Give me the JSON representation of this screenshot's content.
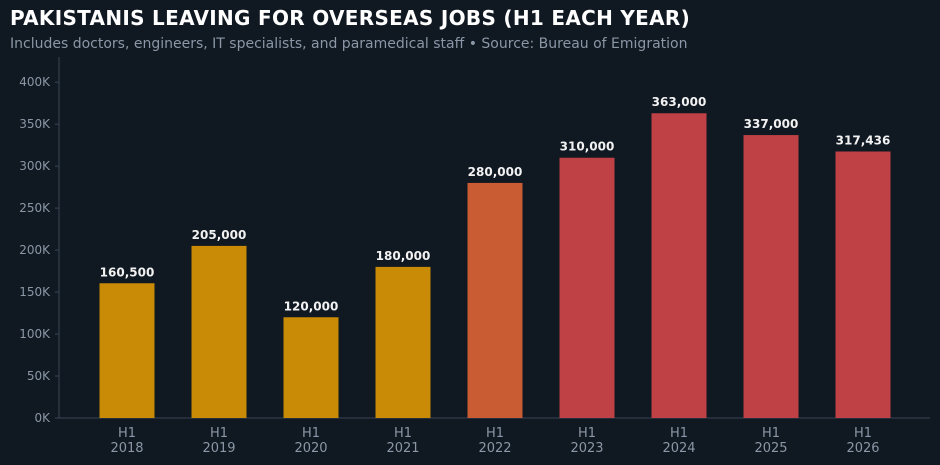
{
  "title": "PAKISTANIS LEAVING FOR OVERSEAS JOBS (H1 EACH YEAR)",
  "subtitle": "Includes doctors, engineers, IT specialists, and paramedical staff  •  Source: Bureau of Emigration",
  "colors": {
    "background": "#101822",
    "axis": "#3a4656",
    "tick_text": "#8b97a6",
    "label_text": "#f2f2f2",
    "bar_gold": "#c98a06",
    "bar_orange": "#c95c33",
    "bar_red": "#c04145"
  },
  "chart_data": {
    "type": "bar",
    "categories": [
      "H1\n2018",
      "H1\n2019",
      "H1\n2020",
      "H1\n2021",
      "H1\n2022",
      "H1\n2023",
      "H1\n2024",
      "H1\n2025",
      "H1\n2026"
    ],
    "values": [
      160500,
      205000,
      120000,
      180000,
      280000,
      310000,
      363000,
      337000,
      317436
    ],
    "value_labels": [
      "160,500",
      "205,000",
      "120,000",
      "180,000",
      "280,000",
      "310,000",
      "363,000",
      "337,000",
      "317,436"
    ],
    "bar_colors": [
      "#c98a06",
      "#c98a06",
      "#c98a06",
      "#c98a06",
      "#c95c33",
      "#c04145",
      "#c04145",
      "#c04145",
      "#c04145"
    ],
    "yticks": [
      0,
      50000,
      100000,
      150000,
      200000,
      250000,
      300000,
      350000,
      400000
    ],
    "ytick_labels": [
      "0K",
      "50K",
      "100K",
      "150K",
      "200K",
      "250K",
      "300K",
      "350K",
      "400K"
    ],
    "ylim": [
      0,
      430000
    ],
    "xlabel": "",
    "ylabel": "",
    "grid": false,
    "legend": "none"
  }
}
